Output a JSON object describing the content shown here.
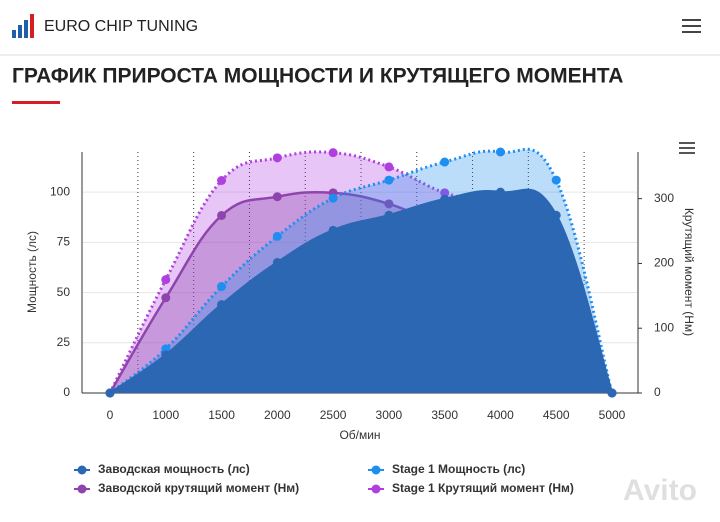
{
  "header": {
    "logo": "EURO CHIP TUNING"
  },
  "heading": "ГРАФИК ПРИРОСТА МОЩНОСТИ И КРУТЯЩЕГО МОМЕНТА",
  "chart_data": {
    "type": "area",
    "x_label": "Об/мин",
    "y_label": "Мощность (лс)",
    "y2_label": "Крутящий момент (Нм)",
    "categories": [
      "0",
      "1000",
      "1500",
      "2000",
      "2500",
      "3000",
      "3500",
      "4000",
      "4500",
      "5000"
    ],
    "ylim": [
      0,
      120
    ],
    "yticks": [
      0,
      25,
      50,
      75,
      100
    ],
    "y2lim": [
      0,
      372
    ],
    "y2ticks": [
      0,
      100,
      200,
      300
    ],
    "legend": "bottom",
    "series": [
      {
        "name": "Заводская мощность (лс)",
        "color": "#2b67b3",
        "opacity": 1,
        "dotted": false,
        "axis": "y",
        "values": [
          0,
          19,
          44,
          65,
          81,
          88.5,
          96.5,
          100,
          88.5,
          0
        ]
      },
      {
        "name": "Stage 1 Мощность (лс)",
        "color": "#1e8ef0",
        "opacity": 0.3,
        "dotted": true,
        "axis": "y",
        "values": [
          0,
          22,
          53,
          78,
          97,
          106,
          115,
          120,
          106,
          0
        ]
      },
      {
        "name": "Заводской крутящий момент (Нм)",
        "color": "#8e44ad",
        "opacity": 0.35,
        "dotted": false,
        "axis": "y2",
        "values": [
          0,
          147,
          274,
          303,
          309,
          292,
          258,
          241,
          199,
          0
        ]
      },
      {
        "name": "Stage 1 Крутящий момент (Нм)",
        "color": "#b03fe0",
        "opacity": 0.3,
        "dotted": true,
        "axis": "y2",
        "values": [
          0,
          175,
          328,
          363,
          371,
          349,
          309,
          289,
          240,
          0
        ]
      }
    ]
  },
  "watermark": "Avito"
}
